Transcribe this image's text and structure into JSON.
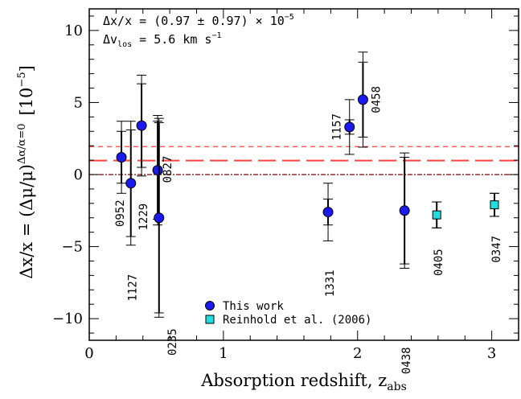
{
  "chart_data": {
    "type": "scatter",
    "xlabel": "Absorption redshift, z",
    "xlabel_sub": "abs",
    "ylabel": "Δx/x = (Δμ/μ)",
    "ylabel_sup": "Δα/α=0",
    "ylabel_unit": "[10",
    "ylabel_unit_sup": "−5",
    "ylabel_unit_close": "]",
    "xlim": [
      0,
      3.2
    ],
    "ylim": [
      -11.5,
      11.5
    ],
    "x_ticks": [
      "0",
      "1",
      "2",
      "3"
    ],
    "y_ticks": [
      "−10",
      "−5",
      "0",
      "5",
      "10"
    ],
    "annotation_line1": "Δx/x = (0.97 ± 0.97) × 10",
    "annotation_line1_exp": "−5",
    "annotation_line2_a": "Δv",
    "annotation_line2_sub": "los",
    "annotation_line2_b": " = 5.6 km s",
    "annotation_line2_exp": "−1",
    "reference_lines": {
      "zero": 0,
      "mean": 0.97,
      "mean_plus_sigma": 1.94
    },
    "colors": {
      "this_work": "#1a1aee",
      "reinhold": "#22dddd",
      "mean_line": "#ff4040",
      "zero_line": "#800000"
    },
    "series": [
      {
        "name": "This work",
        "marker": "circle",
        "points": [
          {
            "label": "0952",
            "x": 0.24,
            "y": 1.2,
            "err_stat": 1.8,
            "err_sys": 2.5
          },
          {
            "label": "1127",
            "x": 0.31,
            "y": -0.6,
            "err_stat": 3.7,
            "err_sys": 4.3
          },
          {
            "label": "1229",
            "x": 0.39,
            "y": 3.4,
            "err_stat": 2.9,
            "err_sys": 3.5
          },
          {
            "label": "0827",
            "x": 0.51,
            "y": 0.3,
            "err_stat": 3.4,
            "err_sys": 3.8
          },
          {
            "label": "0235",
            "x": 0.52,
            "y": -3.0,
            "err_stat": 6.6,
            "err_sys": 6.9
          },
          {
            "label": "1331",
            "x": 1.78,
            "y": -2.6,
            "err_stat": 0.9,
            "err_sys": 2.0
          },
          {
            "label": "1157",
            "x": 1.94,
            "y": 3.3,
            "err_stat": 0.5,
            "err_sys": 1.9
          },
          {
            "label": "0458",
            "x": 2.04,
            "y": 5.2,
            "err_stat": 2.6,
            "err_sys": 3.3
          },
          {
            "label": "0438",
            "x": 2.35,
            "y": -2.5,
            "err_stat": 3.7,
            "err_sys": 4.0
          }
        ]
      },
      {
        "name": "Reinhold et al. (2006)",
        "marker": "square",
        "points": [
          {
            "label": "0405",
            "x": 2.59,
            "y": -2.8,
            "err_stat": 0.9,
            "err_sys": 0.9
          },
          {
            "label": "0347",
            "x": 3.02,
            "y": -2.1,
            "err_stat": 0.8,
            "err_sys": 0.8
          }
        ]
      }
    ],
    "legend_position": "bottom-center"
  }
}
